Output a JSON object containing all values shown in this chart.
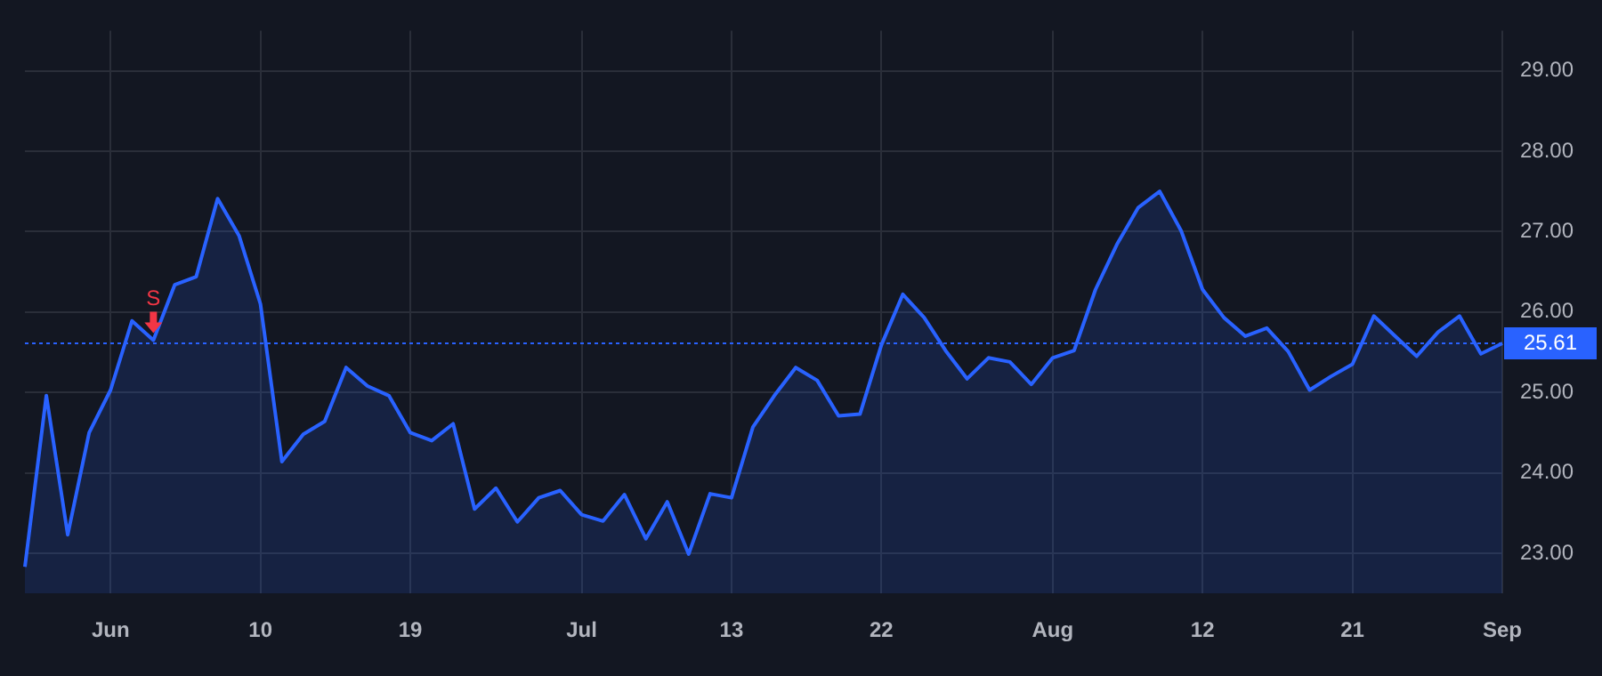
{
  "chart_data": {
    "type": "area",
    "categories": [
      null,
      null,
      null,
      null,
      "Jun",
      null,
      null,
      null,
      null,
      null,
      null,
      "10",
      null,
      null,
      null,
      null,
      null,
      null,
      "19",
      null,
      null,
      null,
      null,
      null,
      null,
      null,
      "Jul",
      null,
      null,
      null,
      null,
      null,
      null,
      "13",
      null,
      null,
      null,
      null,
      null,
      null,
      "22",
      null,
      null,
      null,
      null,
      null,
      null,
      null,
      "Aug",
      null,
      null,
      null,
      null,
      null,
      null,
      "12",
      null,
      null,
      null,
      null,
      null,
      null,
      "21",
      null,
      null,
      null,
      null,
      null,
      null,
      "Sep"
    ],
    "series": [
      {
        "color": "#2962ff",
        "values": [
          22.83,
          24.96,
          23.23,
          24.5,
          25.03,
          25.89,
          25.65,
          26.34,
          26.44,
          27.41,
          26.95,
          26.1,
          24.14,
          24.48,
          24.64,
          25.31,
          25.08,
          24.96,
          24.5,
          24.4,
          24.61,
          23.55,
          23.81,
          23.39,
          23.69,
          23.78,
          23.48,
          23.4,
          23.73,
          23.18,
          23.64,
          22.99,
          23.74,
          23.69,
          24.57,
          24.96,
          25.31,
          25.15,
          24.71,
          24.73,
          25.59,
          26.22,
          25.93,
          25.52,
          25.17,
          25.43,
          25.38,
          25.1,
          25.43,
          25.52,
          26.28,
          26.84,
          27.3,
          27.5,
          27.01,
          26.28,
          25.93,
          25.7,
          25.8,
          25.51,
          25.03,
          25.2,
          25.35,
          25.95,
          25.7,
          25.45,
          25.75,
          25.95,
          25.48,
          25.61
        ]
      }
    ],
    "ylim": [
      22.5,
      29.5
    ],
    "yticks": [
      {
        "value": 23,
        "label": "23.00"
      },
      {
        "value": 24,
        "label": "24.00"
      },
      {
        "value": 25,
        "label": "25.00"
      },
      {
        "value": 26,
        "label": "26.00"
      },
      {
        "value": 27,
        "label": "27.00"
      },
      {
        "value": 28,
        "label": "28.00"
      },
      {
        "value": 29,
        "label": "29.00"
      }
    ],
    "ref_lines": [
      {
        "axis": "y",
        "value": 25.61,
        "label": "25.61",
        "color": "#2962ff",
        "line_style": "dotted"
      }
    ],
    "annotations": [
      "S"
    ],
    "grid": true,
    "legend": false,
    "marker": "none",
    "line_style": "solid"
  }
}
